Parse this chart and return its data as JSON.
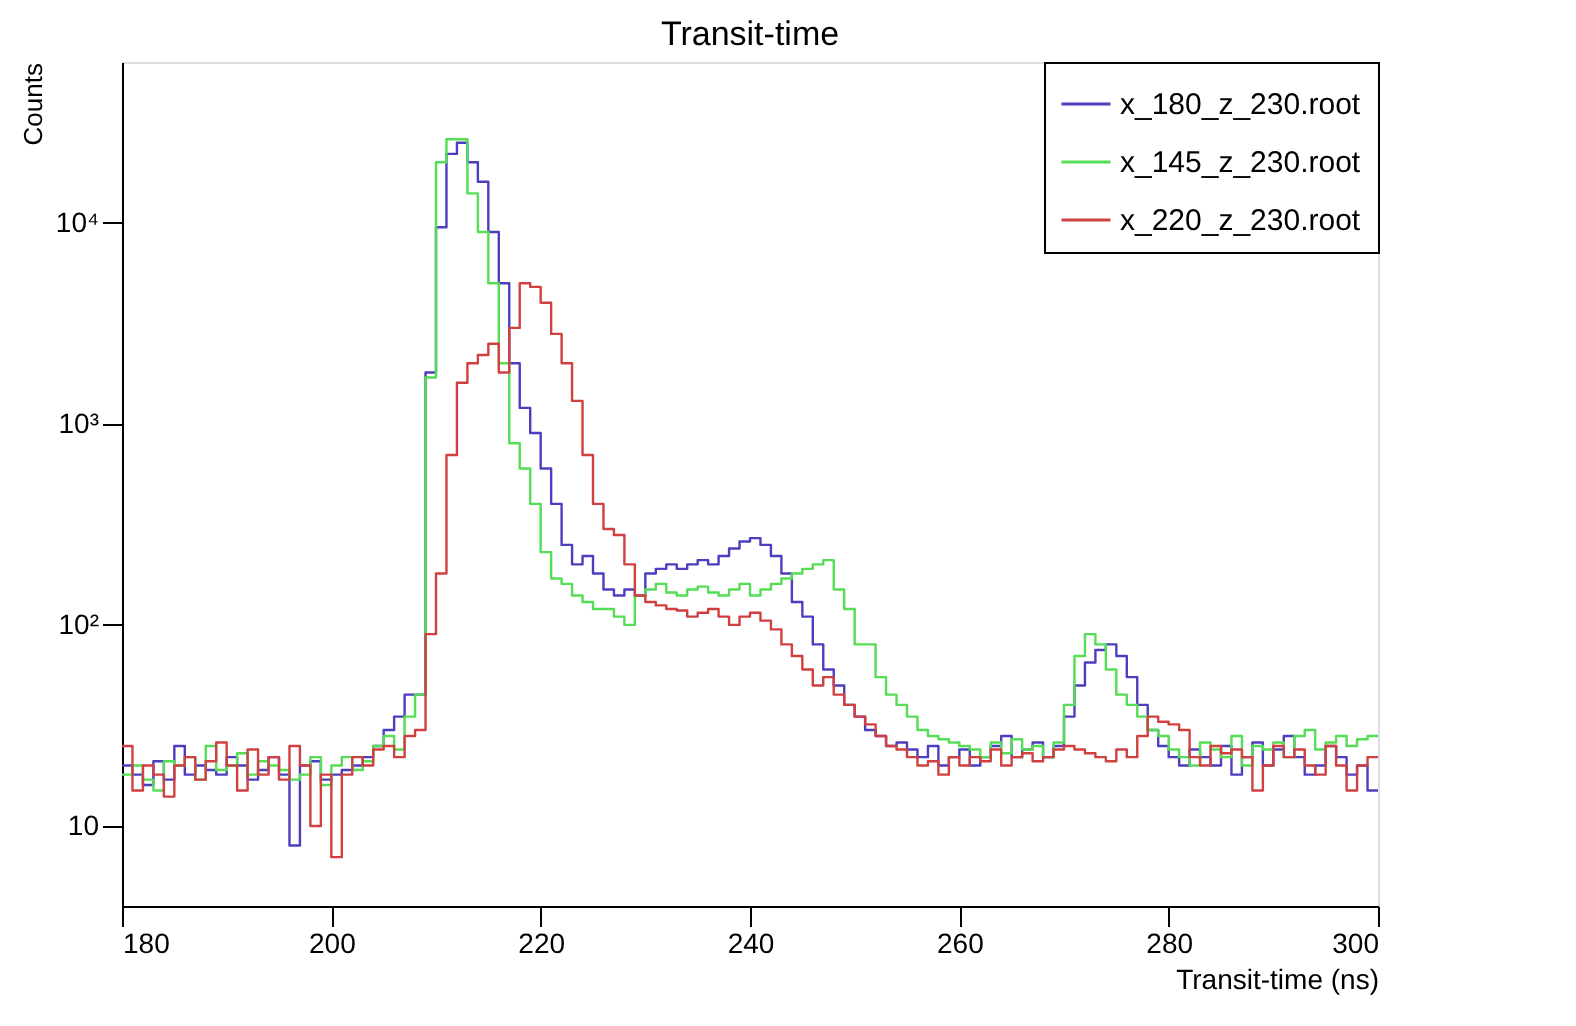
{
  "chart_data": {
    "type": "histogram",
    "title": "Transit-time",
    "xlabel": "Transit-time (ns)",
    "ylabel": "Counts",
    "bins": [
      180,
      181,
      182,
      183,
      184,
      185,
      186,
      187,
      188,
      189,
      190,
      191,
      192,
      193,
      194,
      195,
      196,
      197,
      198,
      199,
      200,
      201,
      202,
      203,
      204,
      205,
      206,
      207,
      208,
      209,
      210,
      211,
      212,
      213,
      214,
      215,
      216,
      217,
      218,
      219,
      220,
      221,
      222,
      223,
      224,
      225,
      226,
      227,
      228,
      229,
      230,
      231,
      232,
      233,
      234,
      235,
      236,
      237,
      238,
      239,
      240,
      241,
      242,
      243,
      244,
      245,
      246,
      247,
      248,
      249,
      250,
      251,
      252,
      253,
      254,
      255,
      256,
      257,
      258,
      259,
      260,
      261,
      262,
      263,
      264,
      265,
      266,
      267,
      268,
      269,
      270,
      271,
      272,
      273,
      274,
      275,
      276,
      277,
      278,
      279,
      280,
      281,
      282,
      283,
      284,
      285,
      286,
      287,
      288,
      289,
      290,
      291,
      292,
      293,
      294,
      295,
      296,
      297,
      298,
      299,
      300
    ],
    "series": [
      {
        "name": "x_180_z_230.root",
        "color": "#4b3fbf",
        "values": [
          20,
          18,
          16,
          21,
          17,
          25,
          18,
          20,
          19,
          18,
          22,
          20,
          17,
          19,
          22,
          18,
          8,
          20,
          21,
          17,
          18,
          19,
          20,
          22,
          25,
          30,
          35,
          45,
          45,
          1800,
          9500,
          22000,
          25000,
          20000,
          16000,
          9000,
          5000,
          2000,
          1200,
          900,
          600,
          400,
          250,
          200,
          220,
          180,
          150,
          140,
          150,
          140,
          180,
          190,
          200,
          190,
          200,
          210,
          200,
          220,
          240,
          260,
          270,
          250,
          220,
          180,
          130,
          110,
          80,
          60,
          50,
          40,
          35,
          30,
          28,
          25,
          26,
          24,
          22,
          25,
          20,
          22,
          24,
          20,
          22,
          25,
          28,
          22,
          24,
          26,
          22,
          25,
          35,
          50,
          65,
          75,
          80,
          70,
          55,
          40,
          30,
          25,
          22,
          20,
          24,
          22,
          20,
          25,
          18,
          22,
          26,
          20,
          24,
          28,
          22,
          18,
          20,
          25,
          22,
          18,
          20,
          15
        ]
      },
      {
        "name": "x_145_z_230.root",
        "color": "#55dd55",
        "values": [
          18,
          20,
          17,
          15,
          21,
          20,
          22,
          17,
          25,
          19,
          20,
          23,
          18,
          21,
          20,
          19,
          17,
          18,
          22,
          16,
          20,
          22,
          19,
          21,
          25,
          28,
          24,
          35,
          45,
          1700,
          20000,
          26000,
          26000,
          14000,
          9000,
          5000,
          2000,
          800,
          600,
          400,
          230,
          170,
          160,
          140,
          130,
          120,
          120,
          110,
          100,
          140,
          150,
          160,
          145,
          140,
          150,
          155,
          145,
          140,
          150,
          160,
          140,
          150,
          160,
          170,
          180,
          190,
          200,
          210,
          150,
          120,
          80,
          80,
          55,
          45,
          40,
          35,
          30,
          28,
          27,
          26,
          25,
          24,
          22,
          26,
          23,
          27,
          24,
          25,
          22,
          26,
          40,
          70,
          90,
          80,
          60,
          45,
          40,
          35,
          30,
          28,
          24,
          22,
          20,
          26,
          24,
          22,
          28,
          20,
          25,
          24,
          26,
          22,
          28,
          30,
          24,
          26,
          28,
          25,
          27,
          28
        ]
      },
      {
        "name": "x_220_z_230.root",
        "color": "#d04040",
        "values": [
          25,
          15,
          20,
          18,
          14,
          20,
          22,
          17,
          21,
          26,
          20,
          15,
          24,
          18,
          22,
          17,
          25,
          20,
          10,
          18,
          7,
          18,
          22,
          20,
          24,
          25,
          22,
          28,
          30,
          90,
          180,
          700,
          1600,
          2000,
          2200,
          2500,
          1800,
          3000,
          5000,
          4800,
          4000,
          2800,
          2000,
          1300,
          700,
          400,
          300,
          280,
          200,
          140,
          130,
          125,
          120,
          118,
          110,
          115,
          120,
          110,
          100,
          110,
          115,
          105,
          95,
          80,
          70,
          60,
          50,
          55,
          45,
          40,
          35,
          32,
          28,
          25,
          24,
          22,
          20,
          21,
          18,
          22,
          20,
          22,
          21,
          24,
          20,
          22,
          23,
          21,
          22,
          24,
          25,
          24,
          23,
          22,
          21,
          24,
          22,
          28,
          35,
          33,
          32,
          30,
          22,
          20,
          25,
          23,
          24,
          22,
          15,
          20,
          25,
          22,
          24,
          20,
          18,
          25,
          20,
          15,
          20,
          22
        ]
      }
    ],
    "xlim": [
      180,
      300
    ],
    "xticks": [
      180,
      200,
      220,
      240,
      260,
      280,
      300
    ],
    "log": "y",
    "ylim": [
      4,
      63000
    ],
    "yticks": [
      10,
      {
        "value": 100,
        "label": "10²"
      },
      {
        "value": 1000,
        "label": "10³"
      },
      {
        "value": 10000,
        "label": "10⁴"
      }
    ],
    "legend": "top right",
    "grid": false
  }
}
